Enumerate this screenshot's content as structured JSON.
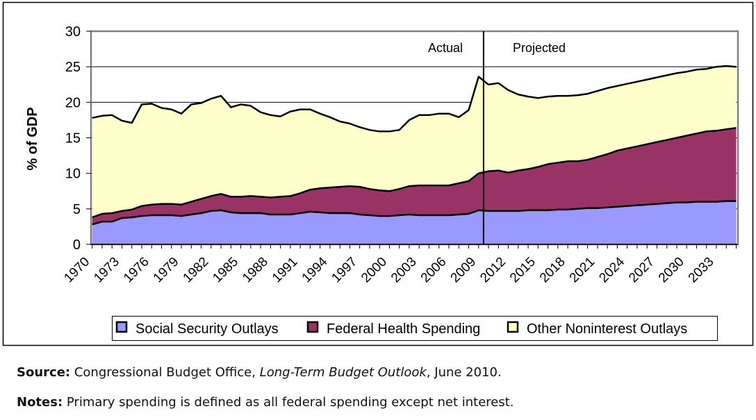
{
  "chart_data": {
    "type": "area",
    "stacked": true,
    "title": "",
    "xlabel": "",
    "ylabel": "% of GDP",
    "ylim": [
      0,
      30
    ],
    "yticks": [
      0,
      5,
      10,
      15,
      20,
      25,
      30
    ],
    "grid": "horizontal",
    "legend_position": "bottom",
    "x_start": 1970,
    "x_end": 2035,
    "x_tick_labels": [
      "1970",
      "1973",
      "1976",
      "1979",
      "1982",
      "1985",
      "1988",
      "1991",
      "1994",
      "1997",
      "2000",
      "2003",
      "2006",
      "2009",
      "2012",
      "2015",
      "2018",
      "2021",
      "2024",
      "2027",
      "2030",
      "2033"
    ],
    "annotations": {
      "actual": "Actual",
      "projected": "Projected",
      "divider_year": 2009.5
    },
    "series": [
      {
        "name": "Social Security Outlays",
        "color": "#9999FF",
        "values": [
          2.8,
          3.2,
          3.2,
          3.7,
          3.8,
          4.0,
          4.1,
          4.1,
          4.1,
          4.0,
          4.2,
          4.4,
          4.7,
          4.8,
          4.5,
          4.4,
          4.4,
          4.4,
          4.2,
          4.2,
          4.2,
          4.4,
          4.6,
          4.5,
          4.4,
          4.4,
          4.4,
          4.2,
          4.1,
          4.0,
          4.0,
          4.1,
          4.2,
          4.1,
          4.1,
          4.1,
          4.1,
          4.2,
          4.3,
          4.8,
          4.7,
          4.7,
          4.7,
          4.7,
          4.8,
          4.8,
          4.8,
          4.9,
          4.9,
          5.0,
          5.1,
          5.1,
          5.2,
          5.3,
          5.4,
          5.5,
          5.6,
          5.7,
          5.8,
          5.9,
          5.9,
          6.0,
          6.0,
          6.0,
          6.1,
          6.1
        ]
      },
      {
        "name": "Federal Health Spending",
        "color": "#993366",
        "values": [
          1.0,
          1.1,
          1.2,
          1.0,
          1.1,
          1.4,
          1.5,
          1.6,
          1.6,
          1.6,
          1.8,
          2.0,
          2.1,
          2.3,
          2.2,
          2.3,
          2.4,
          2.3,
          2.4,
          2.5,
          2.6,
          2.8,
          3.1,
          3.4,
          3.6,
          3.7,
          3.8,
          3.9,
          3.7,
          3.6,
          3.5,
          3.7,
          4.0,
          4.2,
          4.2,
          4.2,
          4.2,
          4.4,
          4.6,
          5.2,
          5.6,
          5.7,
          5.4,
          5.7,
          5.8,
          6.1,
          6.5,
          6.6,
          6.8,
          6.7,
          6.8,
          7.2,
          7.5,
          7.9,
          8.1,
          8.3,
          8.5,
          8.7,
          8.9,
          9.1,
          9.4,
          9.6,
          9.9,
          10.0,
          10.1,
          10.3
        ]
      },
      {
        "name": "Other Noninterest Outlays",
        "color": "#FFFFCC",
        "values": [
          14.0,
          13.8,
          13.8,
          12.7,
          12.2,
          14.3,
          14.2,
          13.5,
          13.3,
          12.8,
          13.7,
          13.5,
          13.7,
          13.8,
          12.6,
          13.0,
          12.7,
          11.9,
          11.6,
          11.3,
          11.9,
          11.8,
          11.3,
          10.5,
          9.9,
          9.2,
          8.8,
          8.4,
          8.3,
          8.3,
          8.4,
          8.3,
          9.3,
          9.9,
          9.9,
          10.1,
          10.1,
          9.3,
          10.0,
          13.6,
          12.2,
          12.3,
          11.6,
          10.7,
          10.2,
          9.7,
          9.5,
          9.4,
          9.2,
          9.3,
          9.3,
          9.3,
          9.3,
          9.1,
          9.1,
          9.1,
          9.1,
          9.1,
          9.1,
          9.1,
          9.0,
          9.0,
          8.8,
          9.0,
          8.9,
          8.6
        ]
      }
    ]
  },
  "footer": {
    "source_label": "Source:",
    "source_text_1": " Congressional Budget Office, ",
    "source_italic": "Long-Term Budget Outlook",
    "source_text_2": ", June 2010.",
    "notes_label": "Notes:",
    "notes_text": " Primary spending is defined as all federal spending except net interest."
  }
}
